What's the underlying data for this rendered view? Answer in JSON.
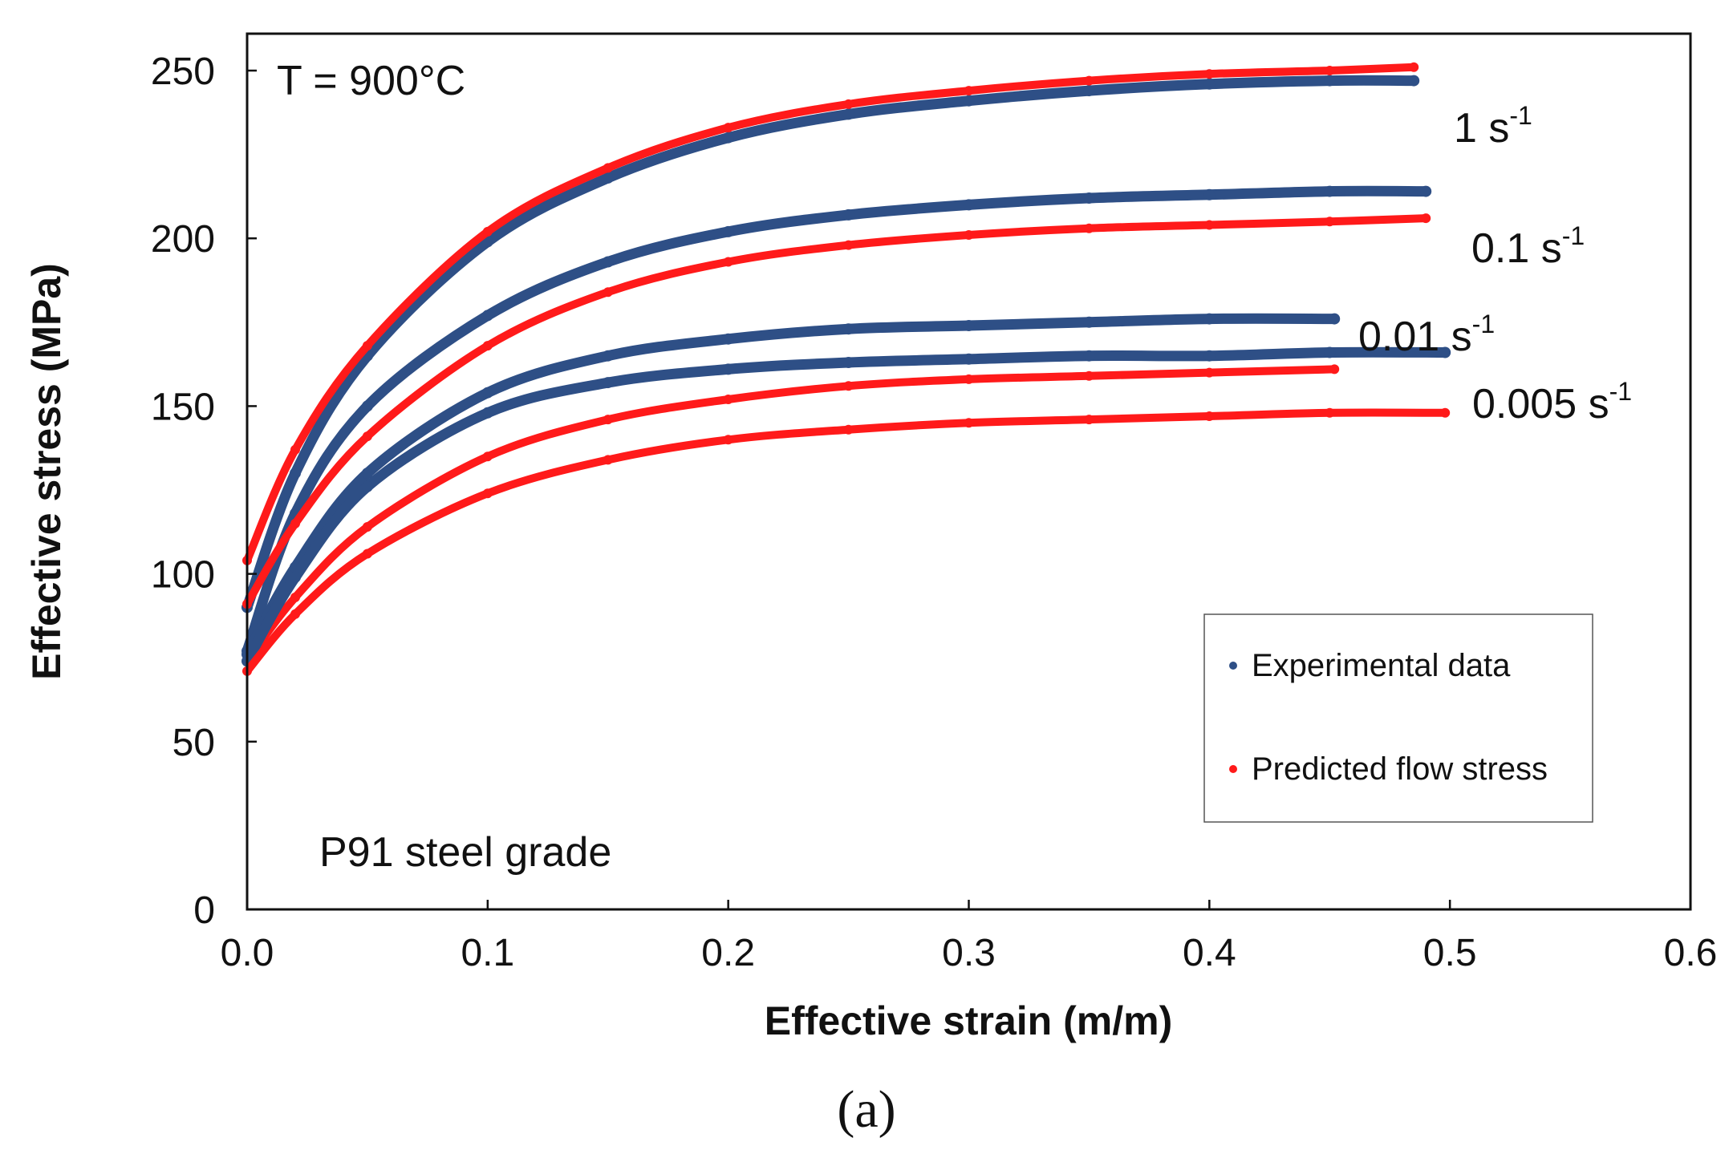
{
  "chart_data": {
    "type": "scatter",
    "title": "",
    "xlabel": "Effective  strain (m/m)",
    "ylabel": "Effective  stress  (MPa)",
    "xlim": [
      0,
      0.6
    ],
    "ylim": [
      0,
      250
    ],
    "xticks": [
      "0.0",
      "0.1",
      "0.2",
      "0.3",
      "0.4",
      "0.5",
      "0.6"
    ],
    "yticks": [
      "0",
      "50",
      "100",
      "150",
      "200",
      "250"
    ],
    "grid": false,
    "legend_position": "bottom-right",
    "legend": [
      {
        "label": "Experimental data",
        "color": "#2e4f86"
      },
      {
        "label": "Predicted flow stress",
        "color": "#ff1a1a"
      }
    ],
    "annotations": {
      "temperature": "T  =  900°C",
      "material": "P91  steel  grade",
      "panel_label": "(a)"
    },
    "rate_labels": [
      {
        "text": "1  s",
        "exp": "-1"
      },
      {
        "text": "0.1  s",
        "exp": "-1"
      },
      {
        "text": "0.01  s",
        "exp": "-1"
      },
      {
        "text": "0.005  s",
        "exp": "-1"
      }
    ],
    "series": [
      {
        "name": "Experimental data",
        "rate": "1 s-1",
        "color": "#2e4f86",
        "x": [
          0.0,
          0.02,
          0.05,
          0.1,
          0.15,
          0.2,
          0.25,
          0.3,
          0.35,
          0.4,
          0.45,
          0.485
        ],
        "y": [
          90,
          130,
          165,
          199,
          218,
          230,
          237,
          241,
          244,
          246,
          247,
          247
        ]
      },
      {
        "name": "Predicted flow stress",
        "rate": "1 s-1",
        "color": "#ff1a1a",
        "x": [
          0.0,
          0.02,
          0.05,
          0.1,
          0.15,
          0.2,
          0.25,
          0.3,
          0.35,
          0.4,
          0.45,
          0.485
        ],
        "y": [
          104,
          137,
          168,
          202,
          221,
          233,
          240,
          244,
          247,
          249,
          250,
          251
        ]
      },
      {
        "name": "Experimental data",
        "rate": "0.1 s-1",
        "color": "#2e4f86",
        "x": [
          0.0,
          0.02,
          0.05,
          0.1,
          0.15,
          0.2,
          0.25,
          0.3,
          0.35,
          0.4,
          0.45,
          0.49
        ],
        "y": [
          77,
          118,
          150,
          177,
          193,
          202,
          207,
          210,
          212,
          213,
          214,
          214
        ]
      },
      {
        "name": "Predicted flow stress",
        "rate": "0.1 s-1",
        "color": "#ff1a1a",
        "x": [
          0.0,
          0.02,
          0.05,
          0.1,
          0.15,
          0.2,
          0.25,
          0.3,
          0.35,
          0.4,
          0.45,
          0.49
        ],
        "y": [
          91,
          115,
          141,
          168,
          184,
          193,
          198,
          201,
          203,
          204,
          205,
          206
        ]
      },
      {
        "name": "Experimental data",
        "rate": "0.01 s-1",
        "color": "#2e4f86",
        "x": [
          0.0,
          0.02,
          0.05,
          0.1,
          0.15,
          0.2,
          0.25,
          0.3,
          0.35,
          0.4,
          0.452
        ],
        "y": [
          76,
          102,
          130,
          154,
          165,
          170,
          173,
          174,
          175,
          176,
          176
        ]
      },
      {
        "name": "Predicted flow stress",
        "rate": "0.01 s-1",
        "color": "#ff1a1a",
        "x": [
          0.0,
          0.02,
          0.05,
          0.1,
          0.15,
          0.2,
          0.25,
          0.3,
          0.35,
          0.4,
          0.452
        ],
        "y": [
          74,
          93,
          114,
          135,
          146,
          152,
          156,
          158,
          159,
          160,
          161
        ]
      },
      {
        "name": "Experimental data",
        "rate": "0.005 s-1",
        "color": "#2e4f86",
        "x": [
          0.0,
          0.02,
          0.05,
          0.1,
          0.15,
          0.2,
          0.25,
          0.3,
          0.35,
          0.4,
          0.45,
          0.498
        ],
        "y": [
          74,
          99,
          126,
          148,
          157,
          161,
          163,
          164,
          165,
          165,
          166,
          166
        ]
      },
      {
        "name": "Predicted flow stress",
        "rate": "0.005 s-1",
        "color": "#ff1a1a",
        "x": [
          0.0,
          0.02,
          0.05,
          0.1,
          0.15,
          0.2,
          0.25,
          0.3,
          0.35,
          0.4,
          0.45,
          0.498
        ],
        "y": [
          71,
          88,
          106,
          124,
          134,
          140,
          143,
          145,
          146,
          147,
          148,
          148
        ]
      }
    ]
  }
}
